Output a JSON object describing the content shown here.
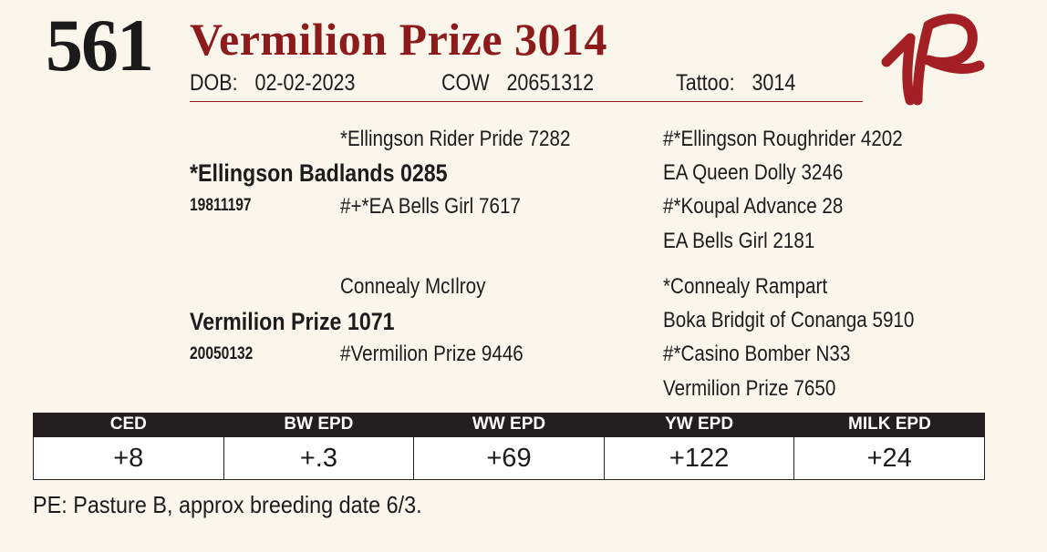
{
  "lot": {
    "number": "561",
    "name": "Vermilion Prize 3014"
  },
  "ids": {
    "dob_label": "DOB:",
    "dob_value": "02-02-2023",
    "cow_label": "COW",
    "cow_value": "20651312",
    "tattoo_label": "Tattoo:",
    "tattoo_value": "3014"
  },
  "brand": {
    "mark": "1R",
    "color": "#a31f24"
  },
  "pedigree": {
    "sire": {
      "name": "*Ellingson Badlands 0285",
      "reg": "19811197",
      "sire": "*Ellingson Rider Pride 7282",
      "dam": "#+*EA Bells Girl 7617",
      "sire_sire": "#*Ellingson Roughrider 4202",
      "sire_dam": "EA Queen Dolly 3246",
      "dam_sire": "#*Koupal Advance 28",
      "dam_dam": "EA Bells Girl 2181"
    },
    "dam": {
      "name": "Vermilion Prize 1071",
      "reg": "20050132",
      "sire": "Connealy McIlroy",
      "dam": "#Vermilion Prize 9446",
      "sire_sire": "*Connealy Rampart",
      "sire_dam": "Boka Bridgit of Conanga 5910",
      "dam_sire": "#*Casino Bomber N33",
      "dam_dam": "Vermilion Prize 7650"
    }
  },
  "epd": {
    "headers": [
      "CED",
      "BW EPD",
      "WW EPD",
      "YW EPD",
      "MILK EPD"
    ],
    "values": [
      "+8",
      "+.3",
      "+69",
      "+122",
      "+24"
    ]
  },
  "note": "PE: Pasture B, approx breeding date 6/3.",
  "colors": {
    "accent": "#8e1b1b",
    "table_header": "#231f20"
  }
}
